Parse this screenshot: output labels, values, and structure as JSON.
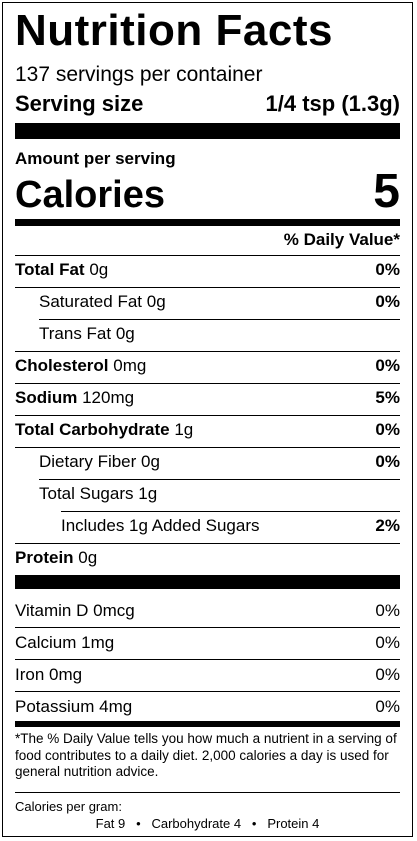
{
  "title": "Nutrition Facts",
  "servings_per_container": "137 servings per container",
  "serving_size": {
    "label": "Serving size",
    "value": "1/4 tsp (1.3g)"
  },
  "amount_per_serving": "Amount per serving",
  "calories": {
    "label": "Calories",
    "value": "5"
  },
  "daily_value_header": "% Daily Value*",
  "nutrients": [
    {
      "name": "Total Fat",
      "amount": "0g",
      "dv": "0%"
    },
    {
      "name": "Saturated Fat",
      "amount": "0g",
      "dv": "0%"
    },
    {
      "name": "Trans Fat",
      "amount": "0g",
      "dv": ""
    },
    {
      "name": "Cholesterol",
      "amount": "0mg",
      "dv": "0%"
    },
    {
      "name": "Sodium",
      "amount": "120mg",
      "dv": "5%"
    },
    {
      "name": "Total Carbohydrate",
      "amount": "1g",
      "dv": "0%"
    },
    {
      "name": "Dietary Fiber",
      "amount": "0g",
      "dv": "0%"
    },
    {
      "name": "Total Sugars",
      "amount": "1g",
      "dv": ""
    },
    {
      "name": "Includes 1g Added Sugars",
      "amount": "",
      "dv": "2%"
    },
    {
      "name": "Protein",
      "amount": "0g",
      "dv": ""
    }
  ],
  "vitamins": [
    {
      "name": "Vitamin D",
      "amount": "0mcg",
      "dv": "0%"
    },
    {
      "name": "Calcium",
      "amount": "1mg",
      "dv": "0%"
    },
    {
      "name": "Iron",
      "amount": "0mg",
      "dv": "0%"
    },
    {
      "name": "Potassium",
      "amount": "4mg",
      "dv": "0%"
    }
  ],
  "footnote": "*The % Daily Value tells you how much a nutrient in a serving of food contributes to a daily diet. 2,000 calories a day is used for general nutrition advice.",
  "calories_per_gram": {
    "label": "Calories per gram:",
    "values": "Fat 9   •   Carbohydrate 4   •   Protein 4"
  }
}
